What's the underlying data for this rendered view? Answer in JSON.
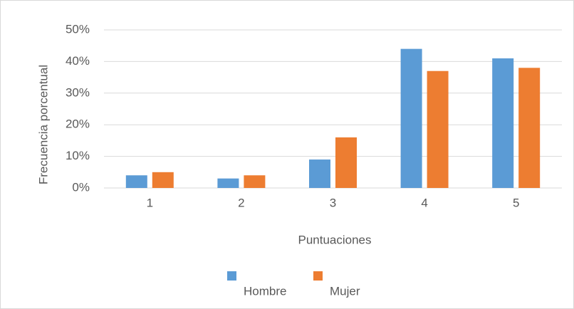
{
  "chart_data": {
    "type": "bar",
    "categories": [
      "1",
      "2",
      "3",
      "4",
      "5"
    ],
    "series": [
      {
        "name": "Hombre",
        "color": "#5b9bd5",
        "values": [
          4,
          3,
          9,
          44,
          41
        ]
      },
      {
        "name": "Mujer",
        "color": "#ed7d31",
        "values": [
          5,
          4,
          16,
          37,
          38
        ]
      }
    ],
    "ylim": [
      0,
      50
    ],
    "yticks": [
      {
        "value": 0,
        "label": "0%"
      },
      {
        "value": 10,
        "label": "10%"
      },
      {
        "value": 20,
        "label": "20%"
      },
      {
        "value": 30,
        "label": "30%"
      },
      {
        "value": 40,
        "label": "40%"
      },
      {
        "value": 50,
        "label": "50%"
      }
    ],
    "y_label": "Frecuencia porcentual",
    "x_label": "Puntuaciones",
    "grid": true,
    "legend": "bottom"
  }
}
